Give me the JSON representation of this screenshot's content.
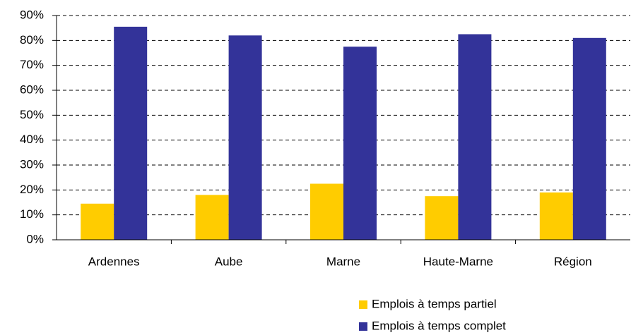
{
  "chart_data": {
    "type": "bar",
    "categories": [
      "Ardennes",
      "Aube",
      "Marne",
      "Haute-Marne",
      "Région"
    ],
    "series": [
      {
        "name": "Emplois à temps partiel",
        "color": "#ffcc00",
        "values": [
          14.5,
          18,
          22.5,
          17.5,
          19
        ]
      },
      {
        "name": "Emplois à temps complet",
        "color": "#333399",
        "values": [
          85.5,
          82,
          77.5,
          82.5,
          81
        ]
      }
    ],
    "ylim": [
      0,
      90
    ],
    "yticks": [
      {
        "value": 0,
        "label": "0%"
      },
      {
        "value": 10,
        "label": "10%"
      },
      {
        "value": 20,
        "label": "20%"
      },
      {
        "value": 30,
        "label": "30%"
      },
      {
        "value": 40,
        "label": "40%"
      },
      {
        "value": 50,
        "label": "50%"
      },
      {
        "value": 60,
        "label": "60%"
      },
      {
        "value": 70,
        "label": "70%"
      },
      {
        "value": 80,
        "label": "80%"
      },
      {
        "value": 90,
        "label": "90%"
      }
    ],
    "grid": true,
    "legend": "bottom-right"
  }
}
